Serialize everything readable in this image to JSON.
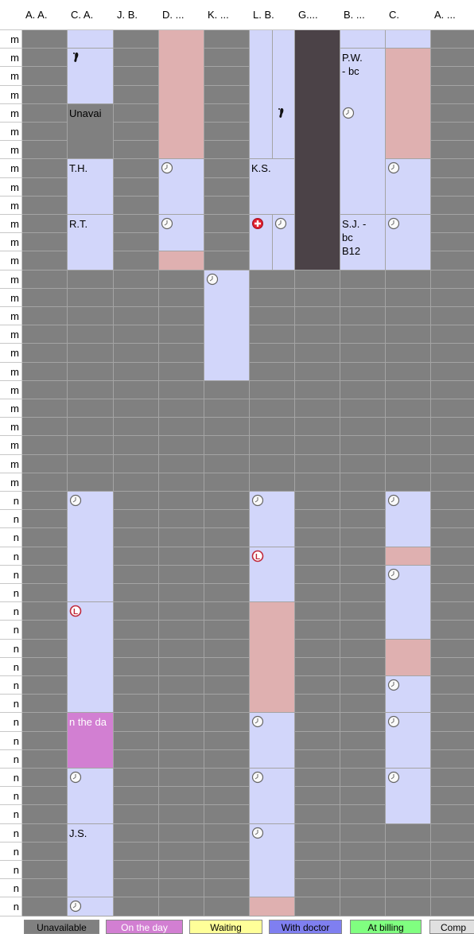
{
  "header": {
    "columns": [
      "A. A.",
      "C. A.",
      "J. B.",
      "D. ...",
      "K. ...",
      "L. B.",
      "G....",
      "B. ...",
      "C.",
      "A. ..."
    ]
  },
  "time_labels": [
    "m",
    "m",
    "m",
    "m",
    "m",
    "m",
    "m",
    "m",
    "m",
    "m",
    "m",
    "m",
    "m",
    "m",
    "m",
    "m",
    "m",
    "m",
    "m",
    "m",
    "m",
    "m",
    "m",
    "m",
    "m",
    "n",
    "n",
    "n",
    "n",
    "n",
    "n",
    "n",
    "n",
    "n",
    "n",
    "n",
    "n",
    "n",
    "n",
    "n",
    "n",
    "n",
    "n",
    "n",
    "n",
    "n",
    "n",
    "n"
  ],
  "appointments": [
    {
      "col": 1,
      "start": 0,
      "span": 1,
      "color": "#d2d6fa"
    },
    {
      "col": 1,
      "start": 1,
      "span": 3,
      "color": "#d2d6fa",
      "icons": [
        {
          "kind": "foot",
          "at": 0
        }
      ]
    },
    {
      "col": 1,
      "start": 4,
      "span": 3,
      "color": "#808080",
      "text": [
        "Unavai"
      ]
    },
    {
      "col": 1,
      "start": 7,
      "span": 3,
      "color": "#d2d6fa",
      "text": [
        "T.H."
      ]
    },
    {
      "col": 1,
      "start": 10,
      "span": 3,
      "color": "#d2d6fa",
      "text": [
        "R.T."
      ]
    },
    {
      "col": 3,
      "start": 0,
      "span": 7,
      "color": "#dfb0b0"
    },
    {
      "col": 3,
      "start": 7,
      "span": 3,
      "color": "#d2d6fa",
      "icons": [
        {
          "kind": "clock",
          "at": 0
        }
      ]
    },
    {
      "col": 3,
      "start": 10,
      "span": 2,
      "color": "#d2d6fa",
      "icons": [
        {
          "kind": "clock",
          "at": 0
        }
      ]
    },
    {
      "col": 3,
      "start": 12,
      "span": 1,
      "color": "#dfb0b0"
    },
    {
      "col": 4,
      "start": 13,
      "span": 6,
      "color": "#d2d6fa",
      "icons": [
        {
          "kind": "clock",
          "at": 0
        }
      ]
    },
    {
      "col": 5,
      "start": 0,
      "span": 7,
      "sub": [
        0,
        2
      ],
      "color": "#d2d6fa"
    },
    {
      "col": 5,
      "start": 0,
      "span": 7,
      "sub": [
        1,
        2
      ],
      "color": "#d2d6fa",
      "icons": [
        {
          "kind": "foot",
          "at": 4
        }
      ]
    },
    {
      "col": 5,
      "start": 7,
      "span": 3,
      "color": "#d2d6fa",
      "text": [
        "K.S."
      ]
    },
    {
      "col": 5,
      "start": 10,
      "span": 3,
      "sub": [
        0,
        2
      ],
      "color": "#d2d6fa",
      "icons": [
        {
          "kind": "cross",
          "at": 0
        }
      ]
    },
    {
      "col": 5,
      "start": 10,
      "span": 3,
      "sub": [
        1,
        2
      ],
      "color": "#d2d6fa",
      "icons": [
        {
          "kind": "clock",
          "at": 0
        }
      ]
    },
    {
      "col": 6,
      "start": 0,
      "span": 13,
      "color": "#4b4247"
    },
    {
      "col": 7,
      "start": 0,
      "span": 1,
      "color": "#d2d6fa"
    },
    {
      "col": 7,
      "start": 1,
      "span": 9,
      "color": "#d2d6fa",
      "text": [
        "P.W.",
        "- bc"
      ],
      "icons": [
        {
          "kind": "clock",
          "at": 3
        }
      ]
    },
    {
      "col": 7,
      "start": 10,
      "span": 3,
      "color": "#d2d6fa",
      "text": [
        "S.J. -",
        "bc",
        "B12"
      ]
    },
    {
      "col": 8,
      "start": 0,
      "span": 1,
      "color": "#d2d6fa"
    },
    {
      "col": 8,
      "start": 1,
      "span": 6,
      "color": "#dfb0b0"
    },
    {
      "col": 8,
      "start": 7,
      "span": 3,
      "color": "#d2d6fa",
      "icons": [
        {
          "kind": "clock",
          "at": 0
        }
      ]
    },
    {
      "col": 8,
      "start": 10,
      "span": 3,
      "color": "#d2d6fa",
      "icons": [
        {
          "kind": "clock",
          "at": 0
        }
      ]
    },
    {
      "col": 1,
      "start": 25,
      "span": 6,
      "color": "#d2d6fa",
      "icons": [
        {
          "kind": "clock",
          "at": 0
        }
      ]
    },
    {
      "col": 1,
      "start": 31,
      "span": 6,
      "color": "#d2d6fa",
      "icons": [
        {
          "kind": "letter",
          "text": "L",
          "at": 0
        }
      ]
    },
    {
      "col": 1,
      "start": 37,
      "span": 3,
      "color": "#d27fd2",
      "text_color": "#ffffff",
      "text": [
        "n the da"
      ]
    },
    {
      "col": 1,
      "start": 40,
      "span": 3,
      "color": "#d2d6fa",
      "icons": [
        {
          "kind": "clock",
          "at": 0
        }
      ]
    },
    {
      "col": 1,
      "start": 43,
      "span": 4,
      "color": "#d2d6fa",
      "text": [
        "J.S."
      ]
    },
    {
      "col": 1,
      "start": 47,
      "span": 1,
      "color": "#d2d6fa",
      "icons": [
        {
          "kind": "clock",
          "at": 0
        }
      ]
    },
    {
      "col": 5,
      "start": 25,
      "span": 3,
      "color": "#d2d6fa",
      "icons": [
        {
          "kind": "clock",
          "at": 0
        }
      ]
    },
    {
      "col": 5,
      "start": 28,
      "span": 3,
      "color": "#d2d6fa",
      "icons": [
        {
          "kind": "letter",
          "text": "L",
          "at": 0
        }
      ]
    },
    {
      "col": 5,
      "start": 31,
      "span": 6,
      "color": "#dfb0b0"
    },
    {
      "col": 5,
      "start": 37,
      "span": 3,
      "color": "#d2d6fa",
      "icons": [
        {
          "kind": "clock",
          "at": 0
        }
      ]
    },
    {
      "col": 5,
      "start": 40,
      "span": 3,
      "color": "#d2d6fa",
      "icons": [
        {
          "kind": "clock",
          "at": 0
        }
      ]
    },
    {
      "col": 5,
      "start": 43,
      "span": 4,
      "color": "#d2d6fa",
      "icons": [
        {
          "kind": "clock",
          "at": 0
        }
      ]
    },
    {
      "col": 5,
      "start": 47,
      "span": 1,
      "color": "#dfb0b0"
    },
    {
      "col": 8,
      "start": 25,
      "span": 3,
      "color": "#d2d6fa",
      "icons": [
        {
          "kind": "clock",
          "at": 0
        }
      ]
    },
    {
      "col": 8,
      "start": 28,
      "span": 1,
      "color": "#dfb0b0"
    },
    {
      "col": 8,
      "start": 29,
      "span": 4,
      "color": "#d2d6fa",
      "icons": [
        {
          "kind": "clock",
          "at": 0
        }
      ]
    },
    {
      "col": 8,
      "start": 33,
      "span": 2,
      "color": "#dfb0b0"
    },
    {
      "col": 8,
      "start": 35,
      "span": 2,
      "color": "#d2d6fa",
      "icons": [
        {
          "kind": "clock",
          "at": 0
        }
      ]
    },
    {
      "col": 8,
      "start": 37,
      "span": 3,
      "color": "#d2d6fa",
      "icons": [
        {
          "kind": "clock",
          "at": 0
        }
      ]
    },
    {
      "col": 8,
      "start": 40,
      "span": 3,
      "color": "#d2d6fa",
      "icons": [
        {
          "kind": "clock",
          "at": 0
        }
      ]
    }
  ],
  "legend": [
    {
      "label": "Unavailable",
      "color": "#808080",
      "text_color": "#000000"
    },
    {
      "label": "On the day",
      "color": "#d27fd2",
      "text_color": "#ffffff"
    },
    {
      "label": "Waiting",
      "color": "#ffff99",
      "text_color": "#000000"
    },
    {
      "label": "With doctor",
      "color": "#7f7ff0",
      "text_color": "#000000"
    },
    {
      "label": "At billing",
      "color": "#80ff80",
      "text_color": "#000000"
    },
    {
      "label": "Comp",
      "color": "#e0e0e0",
      "text_color": "#000000"
    }
  ]
}
